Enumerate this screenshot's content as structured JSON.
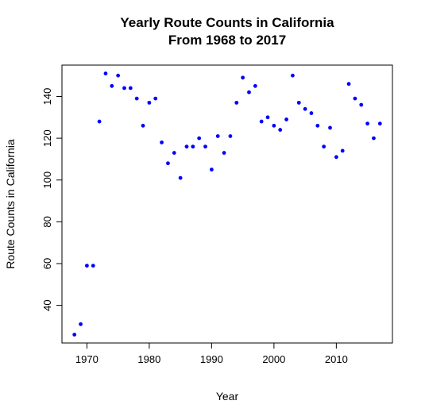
{
  "chart_data": {
    "type": "scatter",
    "title": "Yearly Route Counts in California",
    "subtitle": "From 1968 to 2017",
    "xlabel": "Year",
    "ylabel": "Route Counts in California",
    "xlim": [
      1966,
      2019
    ],
    "ylim": [
      22,
      155
    ],
    "x_ticks": [
      1970,
      1980,
      1990,
      2000,
      2010
    ],
    "y_ticks": [
      40,
      60,
      80,
      100,
      120,
      140
    ],
    "x_tick_labels": [
      "1970",
      "1980",
      "1990",
      "2000",
      "2010"
    ],
    "y_tick_labels": [
      "40",
      "60",
      "80",
      "100",
      "120",
      "140"
    ],
    "point_color": "#0000ff",
    "grid": false,
    "legend": "none",
    "series": [
      {
        "x": [
          1968,
          1969,
          1970,
          1971,
          1972,
          1973,
          1974,
          1975,
          1976,
          1977,
          1978,
          1979,
          1980,
          1981,
          1982,
          1983,
          1984,
          1985,
          1986,
          1987,
          1988,
          1989,
          1990,
          1991,
          1992,
          1993,
          1994,
          1995,
          1996,
          1997,
          1998,
          1999,
          2000,
          2001,
          2002,
          2003,
          2004,
          2005,
          2006,
          2007,
          2008,
          2009,
          2010,
          2011,
          2012,
          2013,
          2014,
          2015,
          2016,
          2017
        ],
        "y": [
          26,
          31,
          59,
          59,
          128,
          151,
          145,
          150,
          144,
          144,
          139,
          126,
          137,
          139,
          118,
          108,
          113,
          101,
          116,
          116,
          120,
          116,
          105,
          121,
          113,
          121,
          137,
          149,
          142,
          145,
          128,
          130,
          126,
          124,
          129,
          150,
          137,
          134,
          132,
          126,
          116,
          125,
          111,
          114,
          146,
          139,
          136,
          127,
          120,
          127
        ]
      }
    ]
  }
}
